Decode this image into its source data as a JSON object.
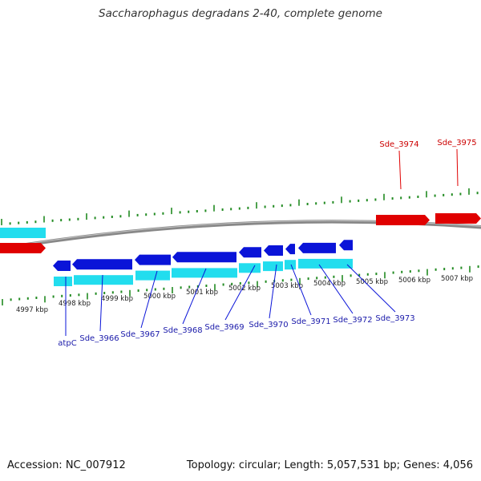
{
  "header": {
    "title": "Saccharophagus degradans 2-40, complete genome"
  },
  "footer": {
    "accession": "Accession: NC_007912",
    "topology": "Topology: circular; Length: 5,057,531 bp; Genes: 4,056"
  },
  "colors": {
    "forward_gene": "#e00000",
    "reverse_gene": "#0a14d8",
    "cds_track": "#22ddee",
    "backbone": "#888888",
    "tick": "#228b22",
    "reverse_label": "#1a1aaa",
    "forward_label": "#cc0000"
  },
  "scale": {
    "ticks": [
      {
        "label": "4997 kbp"
      },
      {
        "label": "4998 kbp"
      },
      {
        "label": "4999 kbp"
      },
      {
        "label": "5000 kbp"
      },
      {
        "label": "5001 kbp"
      },
      {
        "label": "5002 kbp"
      },
      {
        "label": "5003 kbp"
      },
      {
        "label": "5004 kbp"
      },
      {
        "label": "5005 kbp"
      },
      {
        "label": "5006 kbp"
      },
      {
        "label": "5007 kbp"
      }
    ]
  },
  "genes": {
    "reverse": [
      {
        "label": "atpC"
      },
      {
        "label": "Sde_3966"
      },
      {
        "label": "Sde_3967"
      },
      {
        "label": "Sde_3968"
      },
      {
        "label": "Sde_3969"
      },
      {
        "label": "Sde_3970"
      },
      {
        "label": "Sde_3971"
      },
      {
        "label": "Sde_3972"
      },
      {
        "label": "Sde_3973"
      }
    ],
    "forward": [
      {
        "label": "Sde_3974"
      },
      {
        "label": "Sde_3975"
      }
    ]
  }
}
